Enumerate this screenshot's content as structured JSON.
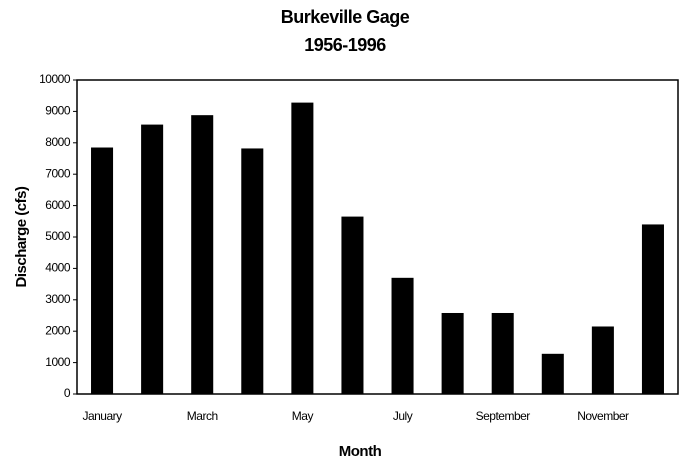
{
  "chart_data": {
    "type": "bar",
    "title": "Burkeville Gage",
    "subtitle": "1956-1996",
    "x_label": "Month",
    "y_label": "Discharge (cfs)",
    "categories": [
      "January",
      null,
      "March",
      null,
      "May",
      null,
      "July",
      null,
      "September",
      null,
      "November",
      null
    ],
    "values": [
      7850,
      8580,
      8880,
      7820,
      9280,
      5650,
      3700,
      2580,
      2580,
      1280,
      2150,
      5400
    ],
    "color": "#000000",
    "ylim": [
      0,
      10000
    ],
    "yticks": [
      0,
      1000,
      2000,
      3000,
      4000,
      5000,
      6000,
      7000,
      8000,
      9000,
      10000
    ],
    "grid": false
  }
}
